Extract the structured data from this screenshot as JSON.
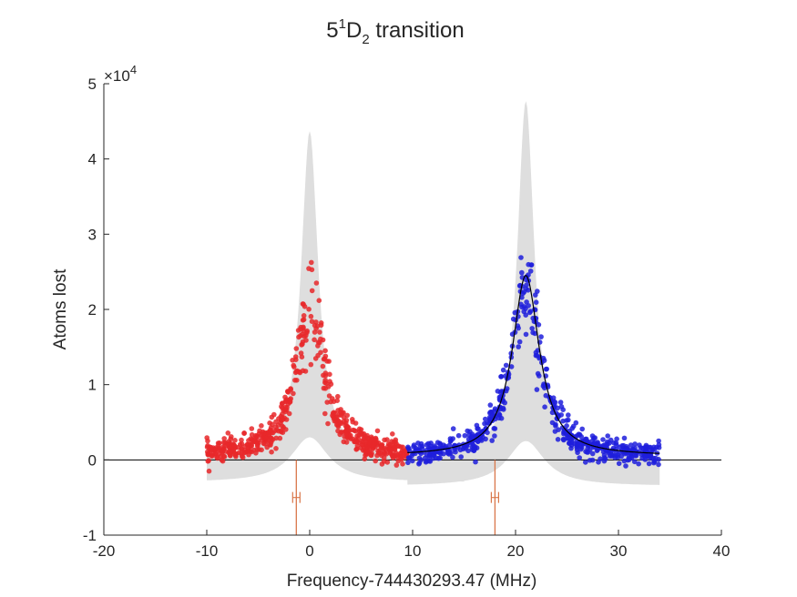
{
  "chart_data": {
    "type": "scatter",
    "title": {
      "base": "5",
      "sup": "1",
      "main": "D",
      "sub": "2",
      "rest": " transition"
    },
    "xlabel": "Frequency-744430293.47 (MHz)",
    "ylabel": "Atoms lost",
    "exponent": {
      "prefix": "×10",
      "power": "4"
    },
    "xlim": [
      -20,
      40
    ],
    "ylim": [
      -1,
      5
    ],
    "y_scale_factor": 10000,
    "x_ticks": [
      -20,
      -10,
      0,
      10,
      20,
      30,
      40
    ],
    "x_tick_labels": [
      "-20",
      "-10",
      "0",
      "10",
      "20",
      "30",
      "40"
    ],
    "y_ticks": [
      -1,
      0,
      1,
      2,
      3,
      4,
      5
    ],
    "y_tick_labels": [
      "-1",
      "0",
      "1",
      "2",
      "3",
      "4",
      "5"
    ],
    "grid": false,
    "colors": {
      "red_series": "#e8282a",
      "blue_series": "#1f1fdc",
      "fit": "#000000",
      "band": "#dedede",
      "marker_lines": "#d9774a",
      "axis": "#262626"
    },
    "series": [
      {
        "color": "red",
        "x_range": [
          -10,
          9.5
        ],
        "peak_center": 0.1,
        "peak_height": 2.0,
        "peak_hwhm": 1.6,
        "points": 560,
        "max_value": 2.75,
        "min_value": -0.33
      },
      {
        "color": "blue",
        "x_range": [
          9.5,
          34
        ],
        "peak_center": 21.0,
        "peak_height": 2.3,
        "peak_hwhm": 1.6,
        "points": 600,
        "max_value": 2.7
      }
    ],
    "fit_curve": {
      "x_range": [
        9.5,
        34
      ],
      "center": 21.0,
      "height": 2.4,
      "hwhm": 1.6,
      "offset": 0.05
    },
    "confidence_band": [
      {
        "x_range": [
          -10,
          15
        ],
        "center": 0.0,
        "upper_peak": 4.35,
        "lower_offset": -0.3
      },
      {
        "x_range": [
          9.5,
          34
        ],
        "center": 21.0,
        "upper_peak": 4.75,
        "lower_offset": -0.35
      }
    ],
    "vertical_markers": [
      {
        "x": -1.3,
        "y_range": [
          -1,
          0
        ],
        "error_mark_y": -0.5
      },
      {
        "x": 18.0,
        "y_range": [
          -1,
          0
        ],
        "error_mark_y": -0.5
      }
    ]
  }
}
